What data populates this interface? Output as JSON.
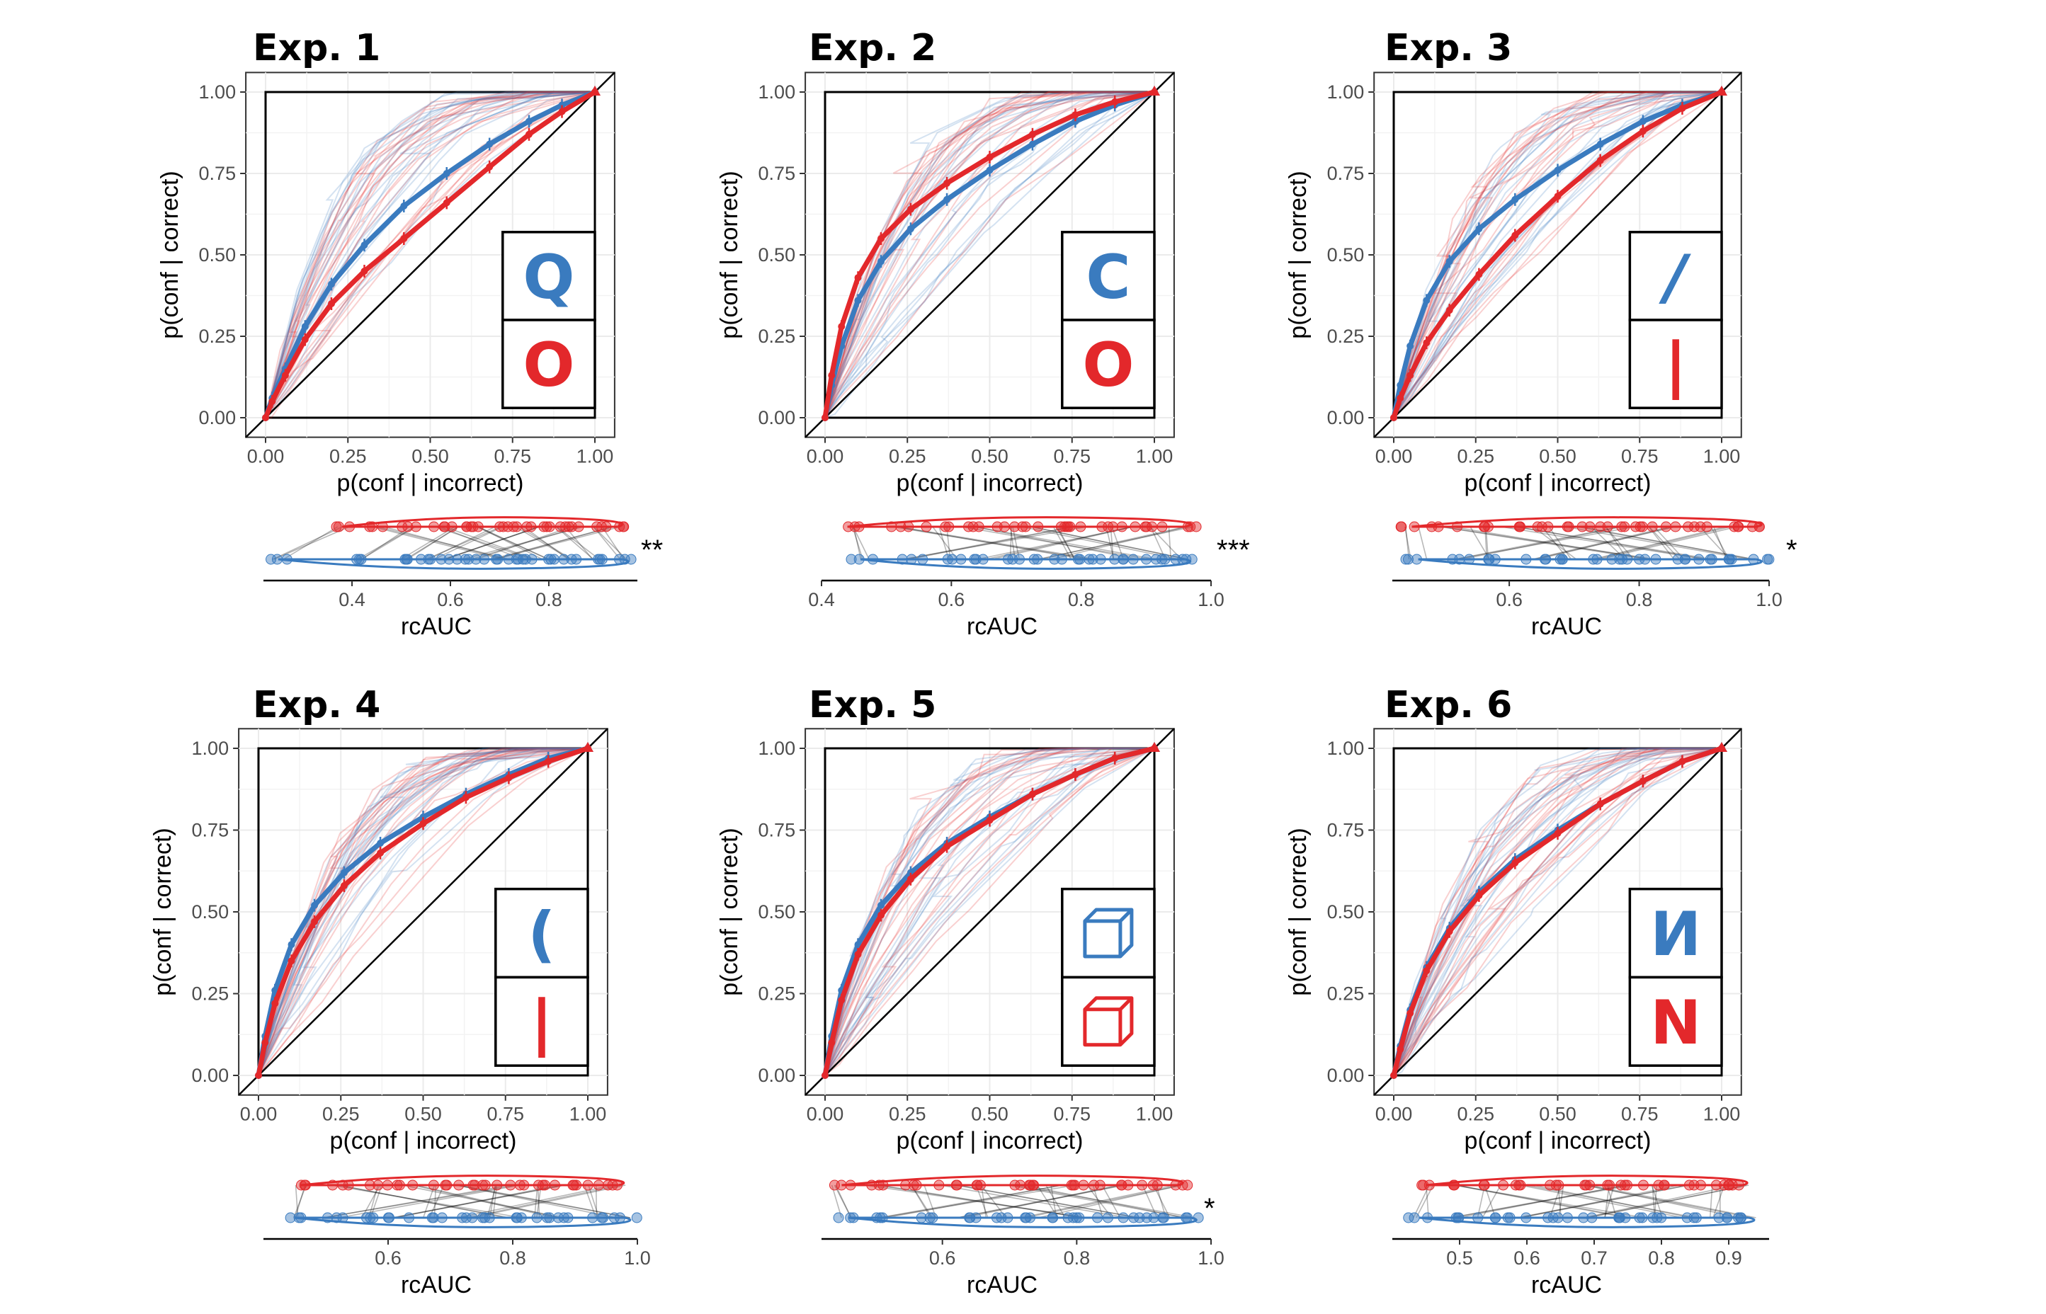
{
  "colors": {
    "blue": "#3a7bbf",
    "red": "#e3282b",
    "grid": "#ebebeb",
    "panel_border": "#333333"
  },
  "chart_data": [
    {
      "type": "line",
      "title": "Exp. 1",
      "xlabel": "p(conf | incorrect)",
      "ylabel": "p(conf | correct)",
      "xlim": [
        0,
        1
      ],
      "ylim": [
        0,
        1
      ],
      "x_ticks": [
        "0.00",
        "0.25",
        "0.50",
        "0.75",
        "1.00"
      ],
      "y_ticks": [
        "0.00",
        "0.25",
        "0.50",
        "0.75",
        "1.00"
      ],
      "grid": true,
      "legend_symbols": {
        "blue": "Q",
        "red": "O"
      },
      "series": [
        {
          "color": "blue",
          "x": [
            0,
            0.02,
            0.06,
            0.12,
            0.2,
            0.3,
            0.42,
            0.55,
            0.68,
            0.8,
            0.9,
            1
          ],
          "y": [
            0,
            0.06,
            0.15,
            0.28,
            0.41,
            0.53,
            0.65,
            0.75,
            0.84,
            0.91,
            0.96,
            1
          ]
        },
        {
          "color": "red",
          "x": [
            0,
            0.02,
            0.06,
            0.12,
            0.2,
            0.3,
            0.42,
            0.55,
            0.68,
            0.8,
            0.9,
            1
          ],
          "y": [
            0,
            0.05,
            0.13,
            0.24,
            0.35,
            0.45,
            0.55,
            0.66,
            0.77,
            0.87,
            0.94,
            1
          ]
        }
      ],
      "rcauc": {
        "xlabel": "rcAUC",
        "ticks": [
          "0.4",
          "0.6",
          "0.8"
        ],
        "tick_values": [
          0.4,
          0.6,
          0.8
        ],
        "xlim": [
          0.22,
          0.98
        ],
        "significance": "**",
        "red_values": [
          0.38,
          0.45,
          0.52,
          0.58,
          0.62,
          0.66,
          0.7,
          0.74,
          0.78,
          0.82,
          0.86,
          0.9,
          0.94
        ],
        "blue_values": [
          0.25,
          0.42,
          0.5,
          0.56,
          0.6,
          0.64,
          0.68,
          0.72,
          0.76,
          0.8,
          0.85,
          0.9,
          0.95
        ]
      }
    },
    {
      "type": "line",
      "title": "Exp. 2",
      "xlabel": "p(conf | incorrect)",
      "ylabel": "p(conf | correct)",
      "xlim": [
        0,
        1
      ],
      "ylim": [
        0,
        1
      ],
      "x_ticks": [
        "0.00",
        "0.25",
        "0.50",
        "0.75",
        "1.00"
      ],
      "y_ticks": [
        "0.00",
        "0.25",
        "0.50",
        "0.75",
        "1.00"
      ],
      "grid": true,
      "legend_symbols": {
        "blue": "C",
        "red": "O"
      },
      "series": [
        {
          "color": "blue",
          "x": [
            0,
            0.02,
            0.05,
            0.1,
            0.17,
            0.26,
            0.37,
            0.5,
            0.63,
            0.76,
            0.88,
            1
          ],
          "y": [
            0,
            0.1,
            0.22,
            0.36,
            0.48,
            0.58,
            0.67,
            0.76,
            0.84,
            0.91,
            0.96,
            1
          ]
        },
        {
          "color": "red",
          "x": [
            0,
            0.02,
            0.05,
            0.1,
            0.17,
            0.26,
            0.37,
            0.5,
            0.63,
            0.76,
            0.88,
            1
          ],
          "y": [
            0,
            0.13,
            0.28,
            0.43,
            0.55,
            0.64,
            0.72,
            0.8,
            0.87,
            0.93,
            0.97,
            1
          ]
        }
      ],
      "rcauc": {
        "xlabel": "rcAUC",
        "ticks": [
          "0.4",
          "0.6",
          "0.8",
          "1.0"
        ],
        "tick_values": [
          0.4,
          0.6,
          0.8,
          1.0
        ],
        "xlim": [
          0.4,
          1.0
        ],
        "significance": "***",
        "red_values": [
          0.44,
          0.52,
          0.58,
          0.63,
          0.68,
          0.72,
          0.76,
          0.8,
          0.84,
          0.88,
          0.92,
          0.96
        ],
        "blue_values": [
          0.46,
          0.54,
          0.6,
          0.65,
          0.7,
          0.74,
          0.78,
          0.82,
          0.86,
          0.9,
          0.94,
          0.96
        ]
      }
    },
    {
      "type": "line",
      "title": "Exp. 3",
      "xlabel": "p(conf | incorrect)",
      "ylabel": "p(conf | correct)",
      "xlim": [
        0,
        1
      ],
      "ylim": [
        0,
        1
      ],
      "x_ticks": [
        "0.00",
        "0.25",
        "0.50",
        "0.75",
        "1.00"
      ],
      "y_ticks": [
        "0.00",
        "0.25",
        "0.50",
        "0.75",
        "1.00"
      ],
      "grid": true,
      "legend_symbols": {
        "blue": "/",
        "red": "|"
      },
      "series": [
        {
          "color": "blue",
          "x": [
            0,
            0.02,
            0.05,
            0.1,
            0.17,
            0.26,
            0.37,
            0.5,
            0.63,
            0.76,
            0.88,
            1
          ],
          "y": [
            0,
            0.1,
            0.22,
            0.36,
            0.48,
            0.58,
            0.67,
            0.76,
            0.84,
            0.91,
            0.96,
            1
          ]
        },
        {
          "color": "red",
          "x": [
            0,
            0.02,
            0.05,
            0.1,
            0.17,
            0.26,
            0.37,
            0.5,
            0.63,
            0.76,
            0.88,
            1
          ],
          "y": [
            0,
            0.06,
            0.13,
            0.23,
            0.33,
            0.44,
            0.56,
            0.68,
            0.79,
            0.88,
            0.95,
            1
          ]
        }
      ],
      "rcauc": {
        "xlabel": "rcAUC",
        "ticks": [
          "0.6",
          "0.8",
          "1.0"
        ],
        "tick_values": [
          0.6,
          0.8,
          1.0
        ],
        "xlim": [
          0.42,
          1.0
        ],
        "significance": "*",
        "red_values": [
          0.45,
          0.5,
          0.55,
          0.6,
          0.65,
          0.7,
          0.74,
          0.78,
          0.82,
          0.86,
          0.9,
          0.94,
          0.98
        ],
        "blue_values": [
          0.46,
          0.52,
          0.58,
          0.64,
          0.69,
          0.74,
          0.78,
          0.82,
          0.86,
          0.9,
          0.94,
          0.98
        ]
      }
    },
    {
      "type": "line",
      "title": "Exp. 4",
      "xlabel": "p(conf | incorrect)",
      "ylabel": "p(conf | correct)",
      "xlim": [
        0,
        1
      ],
      "ylim": [
        0,
        1
      ],
      "x_ticks": [
        "0.00",
        "0.25",
        "0.50",
        "0.75",
        "1.00"
      ],
      "y_ticks": [
        "0.00",
        "0.25",
        "0.50",
        "0.75",
        "1.00"
      ],
      "grid": true,
      "legend_symbols": {
        "blue": "(",
        "red": "|"
      },
      "series": [
        {
          "color": "blue",
          "x": [
            0,
            0.02,
            0.05,
            0.1,
            0.17,
            0.26,
            0.37,
            0.5,
            0.63,
            0.76,
            0.88,
            1
          ],
          "y": [
            0,
            0.12,
            0.26,
            0.4,
            0.52,
            0.62,
            0.71,
            0.79,
            0.86,
            0.92,
            0.97,
            1
          ]
        },
        {
          "color": "red",
          "x": [
            0,
            0.02,
            0.05,
            0.1,
            0.17,
            0.26,
            0.37,
            0.5,
            0.63,
            0.76,
            0.88,
            1
          ],
          "y": [
            0,
            0.1,
            0.22,
            0.35,
            0.47,
            0.58,
            0.68,
            0.77,
            0.85,
            0.91,
            0.96,
            1
          ]
        }
      ],
      "rcauc": {
        "xlabel": "rcAUC",
        "ticks": [
          "0.6",
          "0.8",
          "1.0"
        ],
        "tick_values": [
          0.6,
          0.8,
          1.0
        ],
        "xlim": [
          0.4,
          1.0
        ],
        "significance": "",
        "red_values": [
          0.46,
          0.52,
          0.58,
          0.63,
          0.68,
          0.72,
          0.76,
          0.8,
          0.84,
          0.88,
          0.92,
          0.97
        ],
        "blue_values": [
          0.45,
          0.51,
          0.57,
          0.62,
          0.67,
          0.72,
          0.76,
          0.8,
          0.84,
          0.88,
          0.93,
          0.98
        ]
      }
    },
    {
      "type": "line",
      "title": "Exp. 5",
      "xlabel": "p(conf | incorrect)",
      "ylabel": "p(conf | correct)",
      "xlim": [
        0,
        1
      ],
      "ylim": [
        0,
        1
      ],
      "x_ticks": [
        "0.00",
        "0.25",
        "0.50",
        "0.75",
        "1.00"
      ],
      "y_ticks": [
        "0.00",
        "0.25",
        "0.50",
        "0.75",
        "1.00"
      ],
      "grid": true,
      "legend_symbols": {
        "blue": "cube",
        "red": "cube"
      },
      "series": [
        {
          "color": "blue",
          "x": [
            0,
            0.02,
            0.05,
            0.1,
            0.17,
            0.26,
            0.37,
            0.5,
            0.63,
            0.76,
            0.88,
            1
          ],
          "y": [
            0,
            0.12,
            0.26,
            0.4,
            0.52,
            0.62,
            0.71,
            0.79,
            0.86,
            0.92,
            0.97,
            1
          ]
        },
        {
          "color": "red",
          "x": [
            0,
            0.02,
            0.05,
            0.1,
            0.17,
            0.26,
            0.37,
            0.5,
            0.63,
            0.76,
            0.88,
            1
          ],
          "y": [
            0,
            0.1,
            0.23,
            0.37,
            0.49,
            0.6,
            0.7,
            0.78,
            0.86,
            0.92,
            0.97,
            1
          ]
        }
      ],
      "rcauc": {
        "xlabel": "rcAUC",
        "ticks": [
          "0.6",
          "0.8",
          "1.0"
        ],
        "tick_values": [
          0.6,
          0.8,
          1.0
        ],
        "xlim": [
          0.42,
          1.0
        ],
        "significance": "*",
        "red_values": [
          0.45,
          0.5,
          0.56,
          0.61,
          0.66,
          0.71,
          0.75,
          0.79,
          0.83,
          0.87,
          0.91,
          0.95
        ],
        "blue_values": [
          0.46,
          0.52,
          0.58,
          0.63,
          0.68,
          0.73,
          0.77,
          0.81,
          0.85,
          0.89,
          0.93,
          0.97
        ]
      }
    },
    {
      "type": "line",
      "title": "Exp. 6",
      "xlabel": "p(conf | incorrect)",
      "ylabel": "p(conf | correct)",
      "xlim": [
        0,
        1
      ],
      "ylim": [
        0,
        1
      ],
      "x_ticks": [
        "0.00",
        "0.25",
        "0.50",
        "0.75",
        "1.00"
      ],
      "y_ticks": [
        "0.00",
        "0.25",
        "0.50",
        "0.75",
        "1.00"
      ],
      "grid": true,
      "legend_symbols": {
        "blue": "И",
        "red": "N"
      },
      "series": [
        {
          "color": "blue",
          "x": [
            0,
            0.02,
            0.05,
            0.1,
            0.17,
            0.26,
            0.37,
            0.5,
            0.63,
            0.76,
            0.88,
            1
          ],
          "y": [
            0,
            0.09,
            0.2,
            0.33,
            0.45,
            0.56,
            0.66,
            0.75,
            0.83,
            0.9,
            0.96,
            1
          ]
        },
        {
          "color": "red",
          "x": [
            0,
            0.02,
            0.05,
            0.1,
            0.17,
            0.26,
            0.37,
            0.5,
            0.63,
            0.76,
            0.88,
            1
          ],
          "y": [
            0,
            0.08,
            0.19,
            0.32,
            0.44,
            0.55,
            0.65,
            0.74,
            0.83,
            0.9,
            0.96,
            1
          ]
        }
      ],
      "rcauc": {
        "xlabel": "rcAUC",
        "ticks": [
          "0.5",
          "0.6",
          "0.7",
          "0.8",
          "0.9"
        ],
        "tick_values": [
          0.5,
          0.6,
          0.7,
          0.8,
          0.9
        ],
        "xlim": [
          0.4,
          0.96
        ],
        "significance": "",
        "red_values": [
          0.45,
          0.5,
          0.55,
          0.6,
          0.64,
          0.68,
          0.72,
          0.76,
          0.8,
          0.84,
          0.88,
          0.92
        ],
        "blue_values": [
          0.44,
          0.49,
          0.54,
          0.59,
          0.64,
          0.68,
          0.72,
          0.76,
          0.8,
          0.84,
          0.88,
          0.93
        ]
      }
    }
  ]
}
